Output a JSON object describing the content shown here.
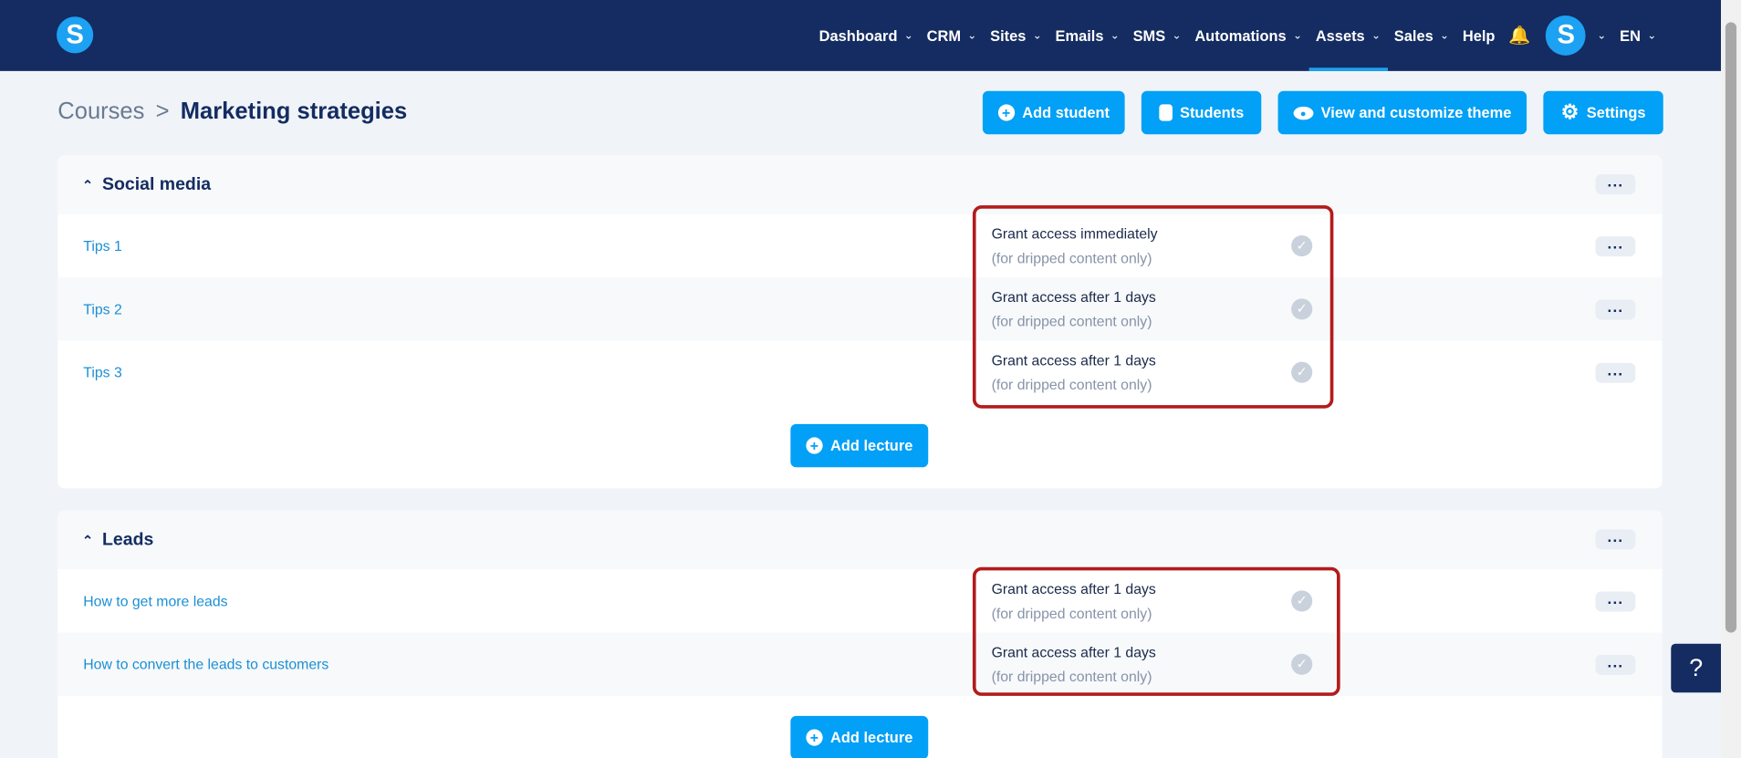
{
  "nav": {
    "logo": "S",
    "items": [
      {
        "label": "Dashboard",
        "chevron": true
      },
      {
        "label": "CRM",
        "chevron": true
      },
      {
        "label": "Sites",
        "chevron": true
      },
      {
        "label": "Emails",
        "chevron": true
      },
      {
        "label": "SMS",
        "chevron": true
      },
      {
        "label": "Automations",
        "chevron": true
      },
      {
        "label": "Assets",
        "chevron": true,
        "active": true
      },
      {
        "label": "Sales",
        "chevron": true
      },
      {
        "label": "Help",
        "chevron": false
      }
    ],
    "avatar": "S",
    "language": "EN"
  },
  "breadcrumb": {
    "parent": "Courses",
    "current": "Marketing strategies"
  },
  "actions": {
    "add_student": "Add student",
    "students": "Students",
    "theme": "View and customize theme",
    "settings": "Settings"
  },
  "sections": [
    {
      "title": "Social media",
      "lectures": [
        {
          "title": "Tips 1",
          "access": "Grant access immediately",
          "note": "(for dripped content only)"
        },
        {
          "title": "Tips 2",
          "access": "Grant access after 1 days",
          "note": "(for dripped content only)"
        },
        {
          "title": "Tips 3",
          "access": "Grant access after 1 days",
          "note": "(for dripped content only)"
        }
      ],
      "add_label": "Add lecture"
    },
    {
      "title": "Leads",
      "lectures": [
        {
          "title": "How to get more leads",
          "access": "Grant access after 1 days",
          "note": "(for dripped content only)"
        },
        {
          "title": "How to convert the leads to customers",
          "access": "Grant access after 1 days",
          "note": "(for dripped content only)"
        }
      ],
      "add_label": "Add lecture"
    }
  ],
  "help": "?",
  "colors": {
    "nav": "#142c61",
    "accent": "#02a0f6",
    "highlight": "#b31b1b"
  }
}
